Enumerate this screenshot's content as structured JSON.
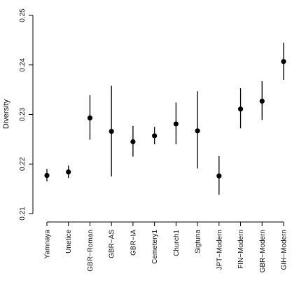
{
  "chart_data": {
    "type": "scatter",
    "subtype": "point-with-error-bars",
    "title": "",
    "xlabel": "",
    "ylabel": "Diversity",
    "ylim": [
      0.21,
      0.25
    ],
    "yticks": [
      "0.21",
      "0.22",
      "0.23",
      "0.24",
      "0.25"
    ],
    "grid": false,
    "legend": "none",
    "categories": [
      "Yamnaya",
      "Unetice",
      "GBR−Roman",
      "GBR−AS",
      "GBR−IA",
      "Cemetery1",
      "Church1",
      "Sigtuna",
      "JPT−Modern",
      "FIN−Modern",
      "GBR−Modern",
      "GIH−Modern"
    ],
    "values": [
      0.2177,
      0.2184,
      0.2293,
      0.2266,
      0.2245,
      0.2257,
      0.2281,
      0.2267,
      0.2176,
      0.2311,
      0.2327,
      0.2407
    ],
    "lower": [
      0.2165,
      0.2172,
      0.2249,
      0.2175,
      0.2215,
      0.224,
      0.224,
      0.2191,
      0.2138,
      0.2272,
      0.2289,
      0.237
    ],
    "upper": [
      0.219,
      0.2197,
      0.2339,
      0.2358,
      0.2277,
      0.2275,
      0.2324,
      0.2347,
      0.2216,
      0.2353,
      0.2367,
      0.2445
    ]
  }
}
